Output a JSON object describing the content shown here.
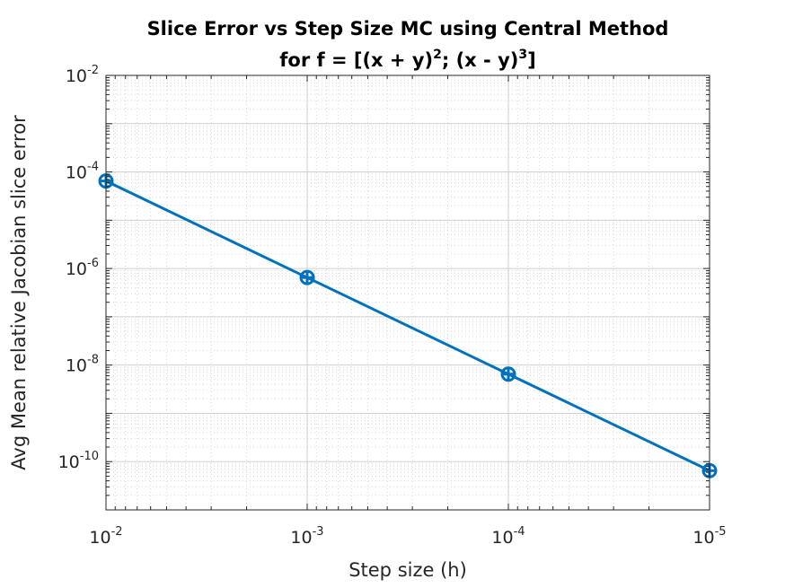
{
  "chart_data": {
    "type": "line",
    "title_line1": "Slice Error vs Step Size MC using Central Method",
    "title_line2_prefix": "for f = [(x + y)",
    "title_line2_exp1": "2",
    "title_line2_mid": "; (x - y)",
    "title_line2_exp2": "3",
    "title_line2_suffix": "]",
    "xlabel": "Step size (h)",
    "ylabel": "Avg Mean relative Jacobian slice error",
    "x_scale": "log",
    "y_scale": "log",
    "x_direction": "reversed",
    "xlim": [
      0.01,
      1e-05
    ],
    "ylim": [
      1e-11,
      0.01
    ],
    "x_ticks": [
      {
        "value": 0.01,
        "base": "10",
        "exp": "-2"
      },
      {
        "value": 0.001,
        "base": "10",
        "exp": "-3"
      },
      {
        "value": 0.0001,
        "base": "10",
        "exp": "-4"
      },
      {
        "value": 1e-05,
        "base": "10",
        "exp": "-5"
      }
    ],
    "y_ticks": [
      {
        "value": 0.01,
        "base": "10",
        "exp": "-2"
      },
      {
        "value": 0.0001,
        "base": "10",
        "exp": "-4"
      },
      {
        "value": 1e-06,
        "base": "10",
        "exp": "-6"
      },
      {
        "value": 1e-08,
        "base": "10",
        "exp": "-8"
      },
      {
        "value": 1e-10,
        "base": "10",
        "exp": "-10"
      }
    ],
    "grid": true,
    "minor_grid": true,
    "series": [
      {
        "marker": "circle-plus",
        "color": "#0072BD",
        "x": [
          0.01,
          0.001,
          0.0001,
          1e-05
        ],
        "y": [
          6.5e-05,
          6.5e-07,
          6.5e-09,
          6.5e-11
        ]
      }
    ]
  }
}
